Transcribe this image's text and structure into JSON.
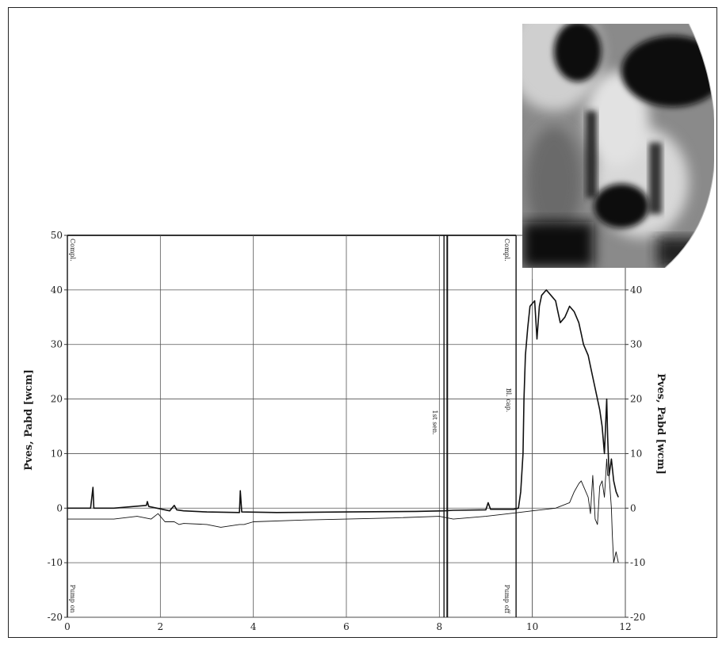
{
  "chart_data": {
    "type": "line",
    "xlim": [
      0,
      12
    ],
    "ylim": [
      -20,
      50
    ],
    "right_ylim": [
      -20,
      40
    ],
    "grid": true,
    "x_ticks": [
      "0",
      "2",
      "4",
      "6",
      "8",
      "10",
      "12"
    ],
    "y_ticks": [
      "-20",
      "-10",
      "0",
      "10",
      "20",
      "30",
      "40",
      "50"
    ],
    "right_y_ticks": [
      "-20",
      "-10",
      "0",
      "10",
      "20",
      "30",
      "40"
    ],
    "ylabel": "Pves, Pabd [wcm]",
    "right_ylabel": "Pves, Pabd [wcm]",
    "series": [
      {
        "x": [
          0,
          0.5,
          0.55,
          0.57,
          0.6,
          1.0,
          1.7,
          1.72,
          1.75,
          2.2,
          2.3,
          2.35,
          2.5,
          3.0,
          3.7,
          3.72,
          3.75,
          4.5,
          6.0,
          7.5,
          8.1,
          8.3,
          9.0,
          9.05,
          9.1,
          9.6,
          9.7,
          9.75,
          9.8,
          9.82,
          9.85,
          9.9,
          9.95,
          10.05,
          10.1,
          10.15,
          10.2,
          10.3,
          10.4,
          10.5,
          10.55,
          10.6,
          10.7,
          10.75,
          10.8,
          10.9,
          11.0,
          11.05,
          11.1,
          11.2,
          11.25,
          11.3,
          11.4,
          11.45,
          11.5,
          11.55,
          11.6,
          11.62,
          11.65,
          11.7,
          11.75,
          11.8,
          11.85
        ],
        "y": [
          0,
          0,
          3.8,
          0,
          0,
          0,
          0.5,
          1.2,
          0.3,
          -0.5,
          0.5,
          -0.3,
          -0.5,
          -0.7,
          -0.8,
          3.2,
          -0.7,
          -0.8,
          -0.7,
          -0.6,
          -0.5,
          -0.4,
          -0.3,
          1.0,
          -0.2,
          -0.2,
          0,
          3,
          10,
          20,
          28,
          33,
          37,
          38,
          31,
          37,
          39,
          40,
          39,
          38,
          36,
          34,
          35,
          36,
          37,
          36,
          34,
          32,
          30,
          28,
          26,
          24,
          20,
          18,
          15,
          10,
          20,
          13,
          6,
          9,
          5,
          3,
          2
        ]
      },
      {
        "x": [
          0,
          0.5,
          1.0,
          1.5,
          1.8,
          1.95,
          2.1,
          2.3,
          2.4,
          2.5,
          3.0,
          3.3,
          3.7,
          3.8,
          4.0,
          5.0,
          6.0,
          7.0,
          8.0,
          8.3,
          9.0,
          9.5,
          9.7,
          10.0,
          10.5,
          10.8,
          10.9,
          11.0,
          11.05,
          11.1,
          11.2,
          11.25,
          11.3,
          11.35,
          11.4,
          11.45,
          11.5,
          11.55,
          11.6,
          11.62,
          11.65,
          11.7,
          11.72,
          11.75,
          11.8,
          11.85
        ],
        "y": [
          -2,
          -2,
          -2,
          -1.5,
          -2,
          -1,
          -2.5,
          -2.5,
          -3,
          -2.8,
          -3,
          -3.5,
          -3,
          -3,
          -2.5,
          -2.2,
          -2,
          -1.8,
          -1.5,
          -2,
          -1.5,
          -1,
          -0.8,
          -0.5,
          0,
          1,
          3,
          4.5,
          5,
          4,
          2,
          -1,
          6,
          -2,
          -3,
          4,
          5,
          2,
          9,
          6,
          6,
          0,
          -5,
          -10,
          -8,
          -10
        ]
      }
    ],
    "event_markers": [
      {
        "x": 0,
        "top_label": "Compl.",
        "bottom_label": "Pump on"
      },
      {
        "x": 8.1,
        "top_label": "",
        "bottom_label": "1st sen."
      },
      {
        "x": 9.65,
        "top_label": "Compl.",
        "bottom_label": "Pump off"
      },
      {
        "x": 9.65,
        "top_label": "",
        "bottom_label": "Bl. cap."
      }
    ]
  },
  "inset_image": {
    "description_icon": "fluoroscopy-image"
  }
}
